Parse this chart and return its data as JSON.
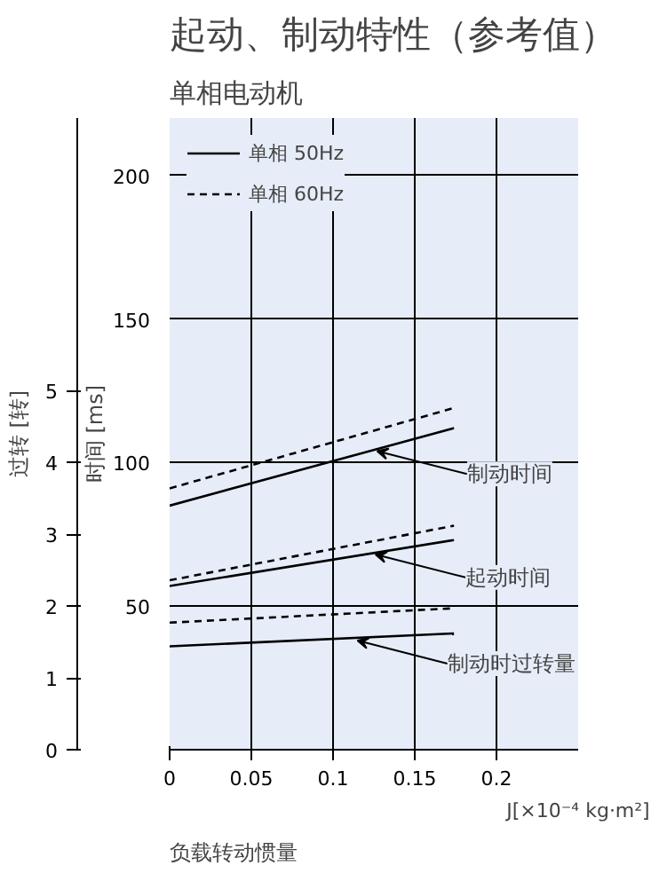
{
  "chart_data": {
    "type": "line",
    "title": "起动、制动特性（参考值）",
    "subtitle": "单相电动机",
    "xlabel": "J[×10⁻⁴ kg·m²]",
    "ylabel": "时间 [ms]",
    "y2label": "过转 [转]",
    "x": [
      0,
      0.174
    ],
    "series": [
      {
        "name": "单相 50Hz",
        "color": "#000000",
        "line_style": "solid",
        "values": [
          85,
          112
        ]
      },
      {
        "name": "单相 60Hz",
        "color": "#000000",
        "line_style": "dashed",
        "values": [
          91,
          119
        ]
      },
      {
        "color": "#000000",
        "line_style": "solid",
        "values": [
          57,
          73
        ]
      },
      {
        "color": "#000000",
        "line_style": "dashed",
        "values": [
          59,
          78
        ]
      },
      {
        "color": "#000000",
        "line_style": "solid",
        "axis": "y2",
        "values": [
          1.44,
          1.62
        ]
      },
      {
        "color": "#000000",
        "line_style": "dashed",
        "axis": "y2",
        "values": [
          1.77,
          1.97
        ]
      }
    ],
    "xlim": [
      0,
      0.25
    ],
    "xticks": [
      0,
      0.05,
      0.1,
      0.15,
      0.2
    ],
    "ylim": [
      0,
      220
    ],
    "yticks": [
      50,
      100,
      150,
      200
    ],
    "y2lim": [
      0,
      8.8
    ],
    "y2ticks": [
      0,
      1,
      2,
      3,
      4,
      5
    ],
    "grid": true,
    "legend": "top left",
    "marker": "none",
    "annotations": [
      {
        "text": "制动时间",
        "x": 0.127,
        "y": 104
      },
      {
        "text": "起动时间",
        "x": 0.126,
        "y": 68
      },
      {
        "text": "制动时过转量",
        "x": 0.115,
        "y": 38
      },
      "负载转动惯量"
    ]
  }
}
